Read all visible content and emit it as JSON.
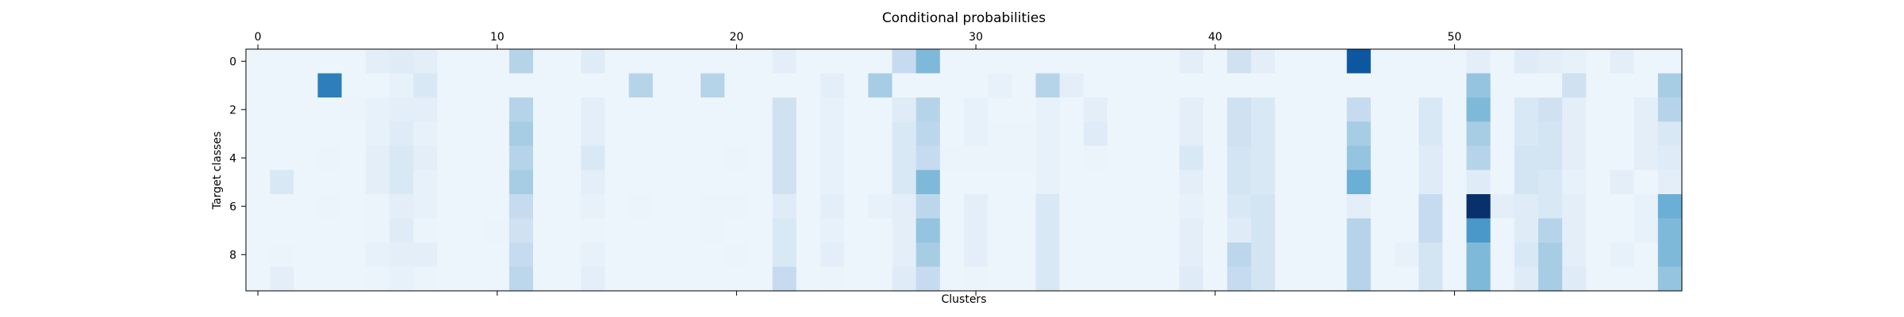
{
  "chart_data": {
    "type": "heatmap",
    "title": "Conditional probabilities",
    "xlabel": "Clusters",
    "ylabel": "Target classes",
    "x_axis_position": "top",
    "x_range": [
      0,
      59
    ],
    "y_range": [
      0,
      9
    ],
    "x_ticks": [
      0,
      10,
      20,
      30,
      40,
      50
    ],
    "y_ticks": [
      0,
      2,
      4,
      6,
      8
    ],
    "colormap": "Blues",
    "color_low": "#f7fbff",
    "color_high": "#08306b",
    "grid": false,
    "legend": "none",
    "values": [
      [
        0.05,
        0.05,
        0.05,
        0.05,
        0.05,
        0.1,
        0.12,
        0.1,
        0.05,
        0.05,
        0.05,
        0.3,
        0.05,
        0.05,
        0.12,
        0.05,
        0.05,
        0.05,
        0.05,
        0.05,
        0.05,
        0.05,
        0.1,
        0.05,
        0.05,
        0.05,
        0.05,
        0.25,
        0.45,
        0.05,
        0.05,
        0.05,
        0.05,
        0.05,
        0.05,
        0.05,
        0.05,
        0.05,
        0.05,
        0.1,
        0.05,
        0.2,
        0.1,
        0.05,
        0.05,
        0.05,
        0.85,
        0.05,
        0.05,
        0.05,
        0.05,
        0.1,
        0.05,
        0.12,
        0.1,
        0.08,
        0.05,
        0.1,
        0.05,
        0.05
      ],
      [
        0.05,
        0.05,
        0.05,
        0.7,
        0.05,
        0.05,
        0.08,
        0.15,
        0.05,
        0.05,
        0.05,
        0.05,
        0.05,
        0.05,
        0.05,
        0.05,
        0.3,
        0.05,
        0.05,
        0.3,
        0.05,
        0.05,
        0.05,
        0.05,
        0.1,
        0.05,
        0.35,
        0.05,
        0.05,
        0.05,
        0.05,
        0.08,
        0.05,
        0.3,
        0.1,
        0.05,
        0.05,
        0.05,
        0.05,
        0.05,
        0.05,
        0.05,
        0.05,
        0.05,
        0.05,
        0.05,
        0.05,
        0.05,
        0.05,
        0.05,
        0.05,
        0.4,
        0.05,
        0.05,
        0.05,
        0.2,
        0.05,
        0.05,
        0.05,
        0.35
      ],
      [
        0.05,
        0.05,
        0.05,
        0.05,
        0.06,
        0.08,
        0.1,
        0.1,
        0.05,
        0.05,
        0.05,
        0.3,
        0.05,
        0.05,
        0.1,
        0.05,
        0.05,
        0.05,
        0.05,
        0.05,
        0.05,
        0.05,
        0.2,
        0.05,
        0.08,
        0.05,
        0.05,
        0.12,
        0.3,
        0.05,
        0.08,
        0.05,
        0.05,
        0.08,
        0.05,
        0.1,
        0.05,
        0.05,
        0.05,
        0.1,
        0.05,
        0.2,
        0.15,
        0.05,
        0.05,
        0.05,
        0.25,
        0.05,
        0.05,
        0.15,
        0.05,
        0.45,
        0.05,
        0.15,
        0.2,
        0.1,
        0.05,
        0.05,
        0.1,
        0.3
      ],
      [
        0.05,
        0.05,
        0.05,
        0.05,
        0.05,
        0.08,
        0.12,
        0.08,
        0.05,
        0.05,
        0.05,
        0.35,
        0.05,
        0.05,
        0.1,
        0.05,
        0.05,
        0.05,
        0.05,
        0.05,
        0.05,
        0.05,
        0.2,
        0.05,
        0.08,
        0.05,
        0.05,
        0.15,
        0.28,
        0.05,
        0.08,
        0.06,
        0.06,
        0.08,
        0.05,
        0.12,
        0.05,
        0.05,
        0.05,
        0.1,
        0.05,
        0.2,
        0.15,
        0.05,
        0.05,
        0.05,
        0.35,
        0.05,
        0.05,
        0.15,
        0.05,
        0.35,
        0.05,
        0.15,
        0.18,
        0.1,
        0.05,
        0.05,
        0.1,
        0.15
      ],
      [
        0.05,
        0.05,
        0.05,
        0.06,
        0.05,
        0.1,
        0.15,
        0.1,
        0.05,
        0.05,
        0.05,
        0.3,
        0.05,
        0.05,
        0.15,
        0.05,
        0.05,
        0.05,
        0.05,
        0.05,
        0.06,
        0.05,
        0.2,
        0.05,
        0.08,
        0.05,
        0.05,
        0.15,
        0.25,
        0.06,
        0.06,
        0.06,
        0.06,
        0.08,
        0.05,
        0.06,
        0.05,
        0.05,
        0.05,
        0.15,
        0.05,
        0.18,
        0.15,
        0.05,
        0.05,
        0.05,
        0.4,
        0.05,
        0.05,
        0.12,
        0.05,
        0.3,
        0.05,
        0.18,
        0.18,
        0.1,
        0.05,
        0.05,
        0.1,
        0.12
      ],
      [
        0.05,
        0.15,
        0.05,
        0.05,
        0.05,
        0.1,
        0.15,
        0.08,
        0.05,
        0.05,
        0.05,
        0.35,
        0.05,
        0.05,
        0.1,
        0.05,
        0.05,
        0.05,
        0.05,
        0.05,
        0.05,
        0.05,
        0.2,
        0.05,
        0.08,
        0.05,
        0.05,
        0.15,
        0.45,
        0.05,
        0.05,
        0.05,
        0.05,
        0.08,
        0.05,
        0.05,
        0.05,
        0.05,
        0.05,
        0.1,
        0.05,
        0.18,
        0.15,
        0.05,
        0.05,
        0.05,
        0.5,
        0.05,
        0.05,
        0.12,
        0.05,
        0.12,
        0.05,
        0.18,
        0.15,
        0.08,
        0.05,
        0.1,
        0.05,
        0.1
      ],
      [
        0.05,
        0.05,
        0.05,
        0.06,
        0.05,
        0.06,
        0.1,
        0.08,
        0.05,
        0.05,
        0.05,
        0.25,
        0.05,
        0.05,
        0.08,
        0.05,
        0.06,
        0.05,
        0.05,
        0.06,
        0.06,
        0.05,
        0.12,
        0.05,
        0.1,
        0.05,
        0.08,
        0.1,
        0.28,
        0.05,
        0.1,
        0.05,
        0.05,
        0.15,
        0.05,
        0.05,
        0.05,
        0.05,
        0.05,
        0.08,
        0.05,
        0.15,
        0.18,
        0.05,
        0.05,
        0.05,
        0.1,
        0.05,
        0.05,
        0.25,
        0.05,
        1.0,
        0.1,
        0.12,
        0.15,
        0.1,
        0.05,
        0.05,
        0.08,
        0.5
      ],
      [
        0.05,
        0.05,
        0.05,
        0.05,
        0.05,
        0.06,
        0.12,
        0.06,
        0.05,
        0.05,
        0.06,
        0.2,
        0.05,
        0.05,
        0.06,
        0.05,
        0.05,
        0.05,
        0.05,
        0.06,
        0.05,
        0.05,
        0.15,
        0.05,
        0.08,
        0.05,
        0.05,
        0.1,
        0.4,
        0.05,
        0.1,
        0.05,
        0.05,
        0.15,
        0.05,
        0.05,
        0.05,
        0.05,
        0.05,
        0.1,
        0.05,
        0.12,
        0.18,
        0.05,
        0.05,
        0.05,
        0.3,
        0.05,
        0.05,
        0.25,
        0.05,
        0.6,
        0.05,
        0.12,
        0.3,
        0.1,
        0.05,
        0.05,
        0.08,
        0.45
      ],
      [
        0.05,
        0.06,
        0.05,
        0.05,
        0.05,
        0.08,
        0.1,
        0.1,
        0.05,
        0.05,
        0.05,
        0.25,
        0.05,
        0.05,
        0.08,
        0.05,
        0.05,
        0.05,
        0.05,
        0.05,
        0.06,
        0.05,
        0.15,
        0.05,
        0.1,
        0.05,
        0.05,
        0.1,
        0.35,
        0.05,
        0.1,
        0.05,
        0.05,
        0.15,
        0.05,
        0.05,
        0.05,
        0.05,
        0.05,
        0.1,
        0.05,
        0.28,
        0.18,
        0.05,
        0.05,
        0.05,
        0.3,
        0.05,
        0.08,
        0.18,
        0.05,
        0.45,
        0.05,
        0.15,
        0.35,
        0.1,
        0.05,
        0.08,
        0.05,
        0.45
      ],
      [
        0.05,
        0.1,
        0.05,
        0.05,
        0.05,
        0.06,
        0.08,
        0.06,
        0.05,
        0.05,
        0.05,
        0.28,
        0.05,
        0.05,
        0.1,
        0.05,
        0.05,
        0.05,
        0.05,
        0.05,
        0.05,
        0.05,
        0.25,
        0.05,
        0.06,
        0.05,
        0.05,
        0.12,
        0.25,
        0.05,
        0.06,
        0.05,
        0.05,
        0.15,
        0.05,
        0.05,
        0.05,
        0.05,
        0.05,
        0.12,
        0.05,
        0.25,
        0.18,
        0.05,
        0.05,
        0.05,
        0.3,
        0.05,
        0.05,
        0.18,
        0.05,
        0.45,
        0.05,
        0.12,
        0.35,
        0.12,
        0.05,
        0.05,
        0.05,
        0.4
      ]
    ]
  }
}
